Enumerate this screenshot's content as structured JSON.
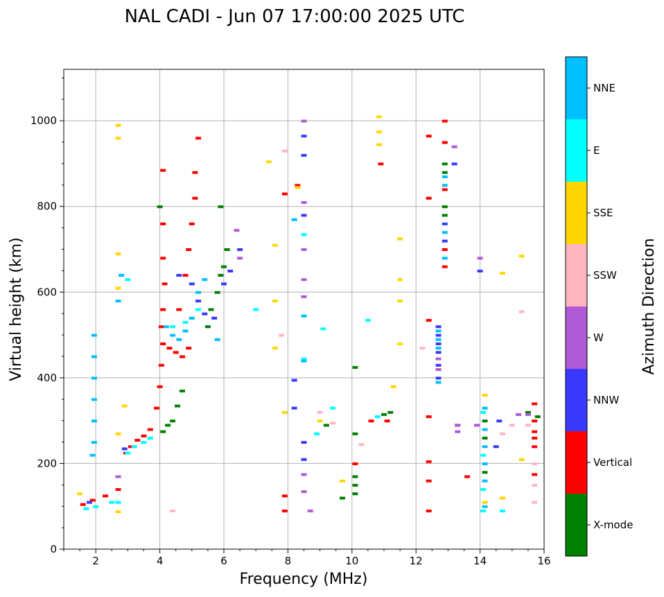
{
  "chart_data": {
    "type": "scatter",
    "title": "NAL CADI - Jun 07 17:00:00 2025 UTC",
    "xlabel": "Frequency (MHz)",
    "ylabel": "Virtual height (km)",
    "xlim": [
      1,
      16
    ],
    "ylim": [
      0,
      1120
    ],
    "xticks": [
      2,
      4,
      6,
      8,
      10,
      12,
      14,
      16
    ],
    "yticks": [
      0,
      200,
      400,
      600,
      800,
      1000
    ],
    "grid": true,
    "colorbar": {
      "label": "Azimuth Direction",
      "categories": [
        {
          "name": "X-mode",
          "color": "#008000"
        },
        {
          "name": "Vertical",
          "color": "#ff0000"
        },
        {
          "name": "NNW",
          "color": "#3a3aff"
        },
        {
          "name": "W",
          "color": "#b05bd6"
        },
        {
          "name": "SSW",
          "color": "#ffb6c1"
        },
        {
          "name": "SSE",
          "color": "#ffd700"
        },
        {
          "name": "E",
          "color": "#00ffff"
        },
        {
          "name": "NNE",
          "color": "#00bfff"
        }
      ]
    },
    "series": [
      {
        "name": "X-mode",
        "points": [
          [
            4.1,
            275
          ],
          [
            4.25,
            290
          ],
          [
            4.4,
            300
          ],
          [
            4.55,
            335
          ],
          [
            4.7,
            370
          ],
          [
            5.5,
            520
          ],
          [
            5.6,
            560
          ],
          [
            5.8,
            600
          ],
          [
            5.9,
            640
          ],
          [
            6.0,
            660
          ],
          [
            6.1,
            700
          ],
          [
            5.9,
            800
          ],
          [
            10.1,
            130
          ],
          [
            10.1,
            150
          ],
          [
            10.1,
            170
          ],
          [
            10.1,
            270
          ],
          [
            10.1,
            425
          ],
          [
            11.0,
            315
          ],
          [
            11.2,
            320
          ],
          [
            9.2,
            290
          ],
          [
            9.7,
            120
          ],
          [
            12.9,
            880
          ],
          [
            12.9,
            900
          ],
          [
            12.9,
            800
          ],
          [
            12.9,
            780
          ],
          [
            14.15,
            300
          ],
          [
            14.15,
            260
          ],
          [
            14.15,
            180
          ],
          [
            15.5,
            320
          ],
          [
            15.8,
            310
          ],
          [
            4.0,
            800
          ]
        ]
      },
      {
        "name": "Vertical",
        "points": [
          [
            1.6,
            105
          ],
          [
            1.9,
            115
          ],
          [
            2.3,
            125
          ],
          [
            2.7,
            140
          ],
          [
            2.95,
            225
          ],
          [
            3.1,
            240
          ],
          [
            3.3,
            255
          ],
          [
            3.5,
            265
          ],
          [
            3.7,
            280
          ],
          [
            3.9,
            330
          ],
          [
            4.0,
            380
          ],
          [
            4.05,
            430
          ],
          [
            4.1,
            480
          ],
          [
            4.3,
            470
          ],
          [
            4.5,
            460
          ],
          [
            4.7,
            450
          ],
          [
            4.9,
            470
          ],
          [
            4.05,
            520
          ],
          [
            4.1,
            560
          ],
          [
            4.15,
            620
          ],
          [
            4.1,
            680
          ],
          [
            4.1,
            760
          ],
          [
            4.1,
            885
          ],
          [
            4.6,
            560
          ],
          [
            4.8,
            640
          ],
          [
            4.9,
            700
          ],
          [
            5.0,
            760
          ],
          [
            5.1,
            820
          ],
          [
            5.1,
            880
          ],
          [
            5.2,
            960
          ],
          [
            7.9,
            830
          ],
          [
            7.9,
            125
          ],
          [
            7.9,
            90
          ],
          [
            8.3,
            850
          ],
          [
            10.1,
            200
          ],
          [
            10.6,
            300
          ],
          [
            10.9,
            900
          ],
          [
            11.1,
            300
          ],
          [
            12.4,
            820
          ],
          [
            12.4,
            965
          ],
          [
            12.4,
            535
          ],
          [
            12.4,
            310
          ],
          [
            12.4,
            205
          ],
          [
            12.4,
            160
          ],
          [
            12.4,
            90
          ],
          [
            12.9,
            1000
          ],
          [
            12.9,
            950
          ],
          [
            12.9,
            840
          ],
          [
            12.9,
            700
          ],
          [
            12.9,
            660
          ],
          [
            13.6,
            170
          ],
          [
            13.3,
            290
          ],
          [
            15.7,
            340
          ],
          [
            15.7,
            300
          ],
          [
            15.7,
            275
          ],
          [
            15.7,
            260
          ],
          [
            15.7,
            240
          ],
          [
            15.7,
            175
          ]
        ]
      },
      {
        "name": "NNW",
        "points": [
          [
            1.8,
            110
          ],
          [
            2.9,
            235
          ],
          [
            4.6,
            640
          ],
          [
            5.0,
            620
          ],
          [
            5.2,
            580
          ],
          [
            5.4,
            550
          ],
          [
            5.7,
            540
          ],
          [
            6.0,
            620
          ],
          [
            6.2,
            650
          ],
          [
            6.5,
            700
          ],
          [
            8.5,
            965
          ],
          [
            8.5,
            920
          ],
          [
            8.5,
            780
          ],
          [
            8.2,
            395
          ],
          [
            8.2,
            330
          ],
          [
            8.5,
            250
          ],
          [
            8.5,
            210
          ],
          [
            12.7,
            520
          ],
          [
            12.7,
            500
          ],
          [
            12.7,
            480
          ],
          [
            12.7,
            460
          ],
          [
            12.7,
            430
          ],
          [
            12.7,
            400
          ],
          [
            12.9,
            760
          ],
          [
            12.9,
            720
          ],
          [
            14.0,
            650
          ],
          [
            14.6,
            300
          ],
          [
            14.5,
            240
          ],
          [
            13.2,
            900
          ]
        ]
      },
      {
        "name": "W",
        "points": [
          [
            2.7,
            170
          ],
          [
            6.4,
            745
          ],
          [
            6.5,
            680
          ],
          [
            8.5,
            1000
          ],
          [
            8.5,
            810
          ],
          [
            8.5,
            700
          ],
          [
            8.5,
            630
          ],
          [
            8.5,
            590
          ],
          [
            8.5,
            175
          ],
          [
            8.5,
            135
          ],
          [
            8.7,
            90
          ],
          [
            12.7,
            445
          ],
          [
            12.7,
            420
          ],
          [
            13.2,
            940
          ],
          [
            13.3,
            290
          ],
          [
            13.3,
            275
          ],
          [
            14.0,
            680
          ],
          [
            13.9,
            290
          ],
          [
            15.2,
            315
          ],
          [
            15.5,
            315
          ]
        ]
      },
      {
        "name": "SSW",
        "points": [
          [
            4.4,
            90
          ],
          [
            7.9,
            930
          ],
          [
            7.8,
            500
          ],
          [
            9.0,
            320
          ],
          [
            9.4,
            295
          ],
          [
            10.3,
            245
          ],
          [
            12.2,
            470
          ],
          [
            14.7,
            270
          ],
          [
            15.0,
            290
          ],
          [
            15.5,
            290
          ],
          [
            15.3,
            555
          ],
          [
            15.7,
            200
          ],
          [
            15.7,
            150
          ],
          [
            15.7,
            110
          ]
        ]
      },
      {
        "name": "SSE",
        "points": [
          [
            1.5,
            130
          ],
          [
            2.7,
            990
          ],
          [
            2.7,
            960
          ],
          [
            2.7,
            690
          ],
          [
            2.7,
            610
          ],
          [
            2.7,
            270
          ],
          [
            2.7,
            88
          ],
          [
            2.9,
            335
          ],
          [
            7.4,
            905
          ],
          [
            7.6,
            710
          ],
          [
            7.6,
            580
          ],
          [
            7.6,
            470
          ],
          [
            7.9,
            320
          ],
          [
            8.3,
            845
          ],
          [
            9.0,
            300
          ],
          [
            9.7,
            160
          ],
          [
            10.85,
            1010
          ],
          [
            10.85,
            975
          ],
          [
            10.85,
            945
          ],
          [
            11.5,
            725
          ],
          [
            11.5,
            630
          ],
          [
            11.5,
            580
          ],
          [
            11.5,
            480
          ],
          [
            11.3,
            380
          ],
          [
            14.15,
            360
          ],
          [
            14.15,
            110
          ],
          [
            14.7,
            645
          ],
          [
            14.7,
            120
          ],
          [
            15.3,
            685
          ],
          [
            15.3,
            210
          ]
        ]
      },
      {
        "name": "E",
        "points": [
          [
            1.7,
            95
          ],
          [
            2.0,
            100
          ],
          [
            2.5,
            110
          ],
          [
            2.7,
            110
          ],
          [
            3.0,
            225
          ],
          [
            3.2,
            240
          ],
          [
            3.5,
            250
          ],
          [
            3.7,
            260
          ],
          [
            3.0,
            630
          ],
          [
            4.4,
            520
          ],
          [
            4.8,
            530
          ],
          [
            5.2,
            560
          ],
          [
            7.0,
            560
          ],
          [
            8.5,
            735
          ],
          [
            8.5,
            445
          ],
          [
            8.9,
            270
          ],
          [
            9.1,
            515
          ],
          [
            9.4,
            330
          ],
          [
            10.5,
            535
          ],
          [
            10.8,
            310
          ],
          [
            14.1,
            320
          ],
          [
            14.1,
            220
          ],
          [
            14.1,
            140
          ],
          [
            14.1,
            90
          ],
          [
            14.7,
            90
          ]
        ]
      },
      {
        "name": "NNE",
        "points": [
          [
            1.95,
            500
          ],
          [
            1.95,
            450
          ],
          [
            1.95,
            400
          ],
          [
            1.95,
            350
          ],
          [
            1.95,
            300
          ],
          [
            1.95,
            250
          ],
          [
            1.9,
            220
          ],
          [
            2.7,
            580
          ],
          [
            2.8,
            640
          ],
          [
            4.2,
            520
          ],
          [
            4.4,
            500
          ],
          [
            4.6,
            490
          ],
          [
            4.8,
            510
          ],
          [
            5.0,
            540
          ],
          [
            5.2,
            600
          ],
          [
            5.4,
            630
          ],
          [
            5.8,
            490
          ],
          [
            8.5,
            545
          ],
          [
            8.5,
            440
          ],
          [
            8.2,
            770
          ],
          [
            12.7,
            510
          ],
          [
            12.7,
            490
          ],
          [
            12.7,
            470
          ],
          [
            12.7,
            390
          ],
          [
            12.9,
            870
          ],
          [
            12.9,
            850
          ],
          [
            12.9,
            740
          ],
          [
            12.9,
            680
          ],
          [
            14.15,
            330
          ],
          [
            14.15,
            280
          ],
          [
            14.15,
            240
          ],
          [
            14.15,
            200
          ],
          [
            14.15,
            160
          ],
          [
            14.15,
            100
          ]
        ]
      }
    ]
  }
}
